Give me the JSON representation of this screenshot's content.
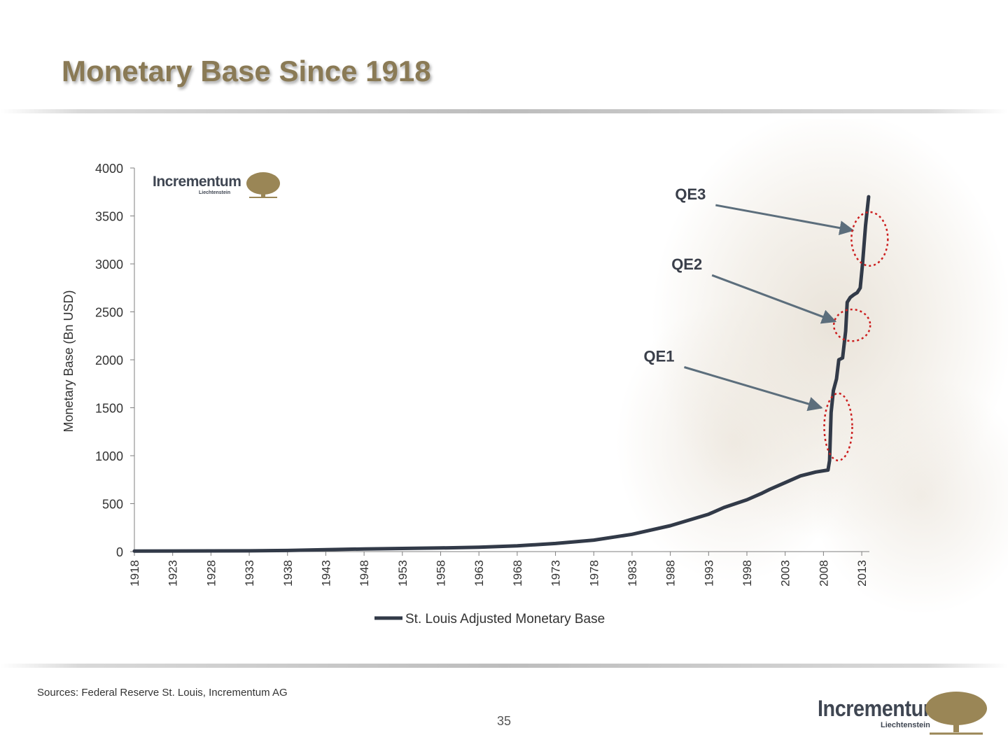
{
  "title": "Monetary Base Since 1918",
  "sources": "Sources: Federal Reserve St. Louis, Incrementum AG",
  "page_number": "35",
  "logo": {
    "brand": "Incrementum",
    "sub": "Liechtenstein"
  },
  "colors": {
    "title": "#8a7a55",
    "series": "#323a48",
    "annotation_arrow": "#5c6e7c",
    "highlight": "#cc1f1f",
    "logo_tree": "#9a8656"
  },
  "chart_data": {
    "type": "line",
    "title": "Monetary Base Since 1918",
    "xlabel": "",
    "ylabel": "Monetary Base (Bn USD)",
    "ylim": [
      0,
      4000
    ],
    "xlim": [
      1918,
      2014
    ],
    "yticks": [
      0,
      500,
      1000,
      1500,
      2000,
      2500,
      3000,
      3500,
      4000
    ],
    "xticks": [
      "1918",
      "1923",
      "1928",
      "1933",
      "1938",
      "1943",
      "1948",
      "1953",
      "1958",
      "1963",
      "1968",
      "1973",
      "1978",
      "1983",
      "1988",
      "1993",
      "1998",
      "2003",
      "2008",
      "2013"
    ],
    "grid": false,
    "legend_position": "bottom",
    "series": [
      {
        "name": "St. Louis Adjusted Monetary Base",
        "x": [
          1918,
          1928,
          1933,
          1938,
          1943,
          1948,
          1958,
          1963,
          1968,
          1973,
          1978,
          1983,
          1988,
          1993,
          1995,
          1998,
          2000,
          2001,
          2003,
          2005,
          2007,
          2008.6,
          2008.8,
          2009.0,
          2009.3,
          2009.7,
          2010.0,
          2010.5,
          2010.9,
          2011.1,
          2011.5,
          2012.0,
          2012.4,
          2012.8,
          2013.1,
          2013.5,
          2013.9
        ],
        "values": [
          5,
          7,
          8,
          12,
          20,
          28,
          38,
          45,
          60,
          85,
          120,
          180,
          270,
          390,
          460,
          540,
          610,
          650,
          720,
          790,
          830,
          850,
          950,
          1450,
          1680,
          1800,
          2000,
          2020,
          2300,
          2600,
          2650,
          2680,
          2700,
          2750,
          3000,
          3400,
          3700
        ]
      }
    ],
    "annotations": [
      {
        "label": "QE1",
        "x": 2009.2,
        "y": 1500
      },
      {
        "label": "QE2",
        "x": 2011.0,
        "y": 2400
      },
      {
        "label": "QE3",
        "x": 2013.3,
        "y": 3350
      }
    ]
  }
}
